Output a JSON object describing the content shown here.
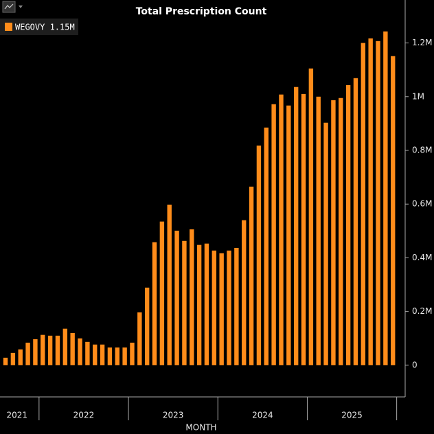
{
  "chart_data": {
    "type": "bar",
    "title": "Total Prescription Count",
    "x_label": "MONTH",
    "categories": [
      null,
      null,
      "2021",
      null,
      null,
      null,
      null,
      null,
      null,
      null,
      null,
      "2022",
      null,
      null,
      null,
      null,
      null,
      null,
      null,
      null,
      null,
      null,
      null,
      "2023",
      null,
      null,
      null,
      null,
      null,
      null,
      null,
      null,
      null,
      null,
      null,
      "2024",
      null,
      null,
      null,
      null,
      null,
      null,
      null,
      null,
      null,
      null,
      null,
      "2025",
      null,
      null,
      null,
      null,
      null
    ],
    "series": [
      {
        "name": "WEGOVY 1.15M",
        "color": "#ff8c1a",
        "values": [
          28000,
          46000,
          59000,
          84000,
          97000,
          113000,
          110000,
          110000,
          136000,
          120000,
          100000,
          87000,
          77000,
          77000,
          66000,
          66000,
          66000,
          84000,
          197000,
          289000,
          458000,
          535000,
          598000,
          501000,
          463000,
          506000,
          448000,
          453000,
          427000,
          417000,
          427000,
          437000,
          540000,
          665000,
          818000,
          885000,
          972000,
          1008000,
          967000,
          1036000,
          1010000,
          1105000,
          1000000,
          903000,
          987000,
          995000,
          1043000,
          1069000,
          1200000,
          1217000,
          1207000,
          1243000,
          1151000
        ]
      }
    ],
    "ylim": [
      -118000,
      1360000
    ],
    "yticks": [
      0,
      {
        "value": 200000,
        "label": "0.2M"
      },
      {
        "value": 400000,
        "label": "0.4M"
      },
      {
        "value": 600000,
        "label": "0.6M"
      },
      {
        "value": 800000,
        "label": "0.8M"
      },
      {
        "value": 1000000,
        "label": "1M"
      },
      {
        "value": 1200000,
        "label": "1.2M"
      }
    ],
    "legend": "top-left"
  }
}
